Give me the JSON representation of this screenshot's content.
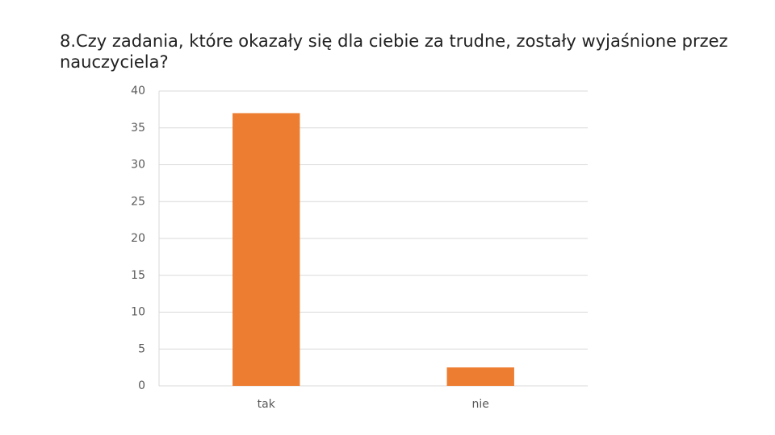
{
  "chart_data": {
    "type": "bar",
    "title": "8.Czy zadania, które okazały się dla ciebie za trudne, zostały wyjaśnione przez nauczyciela?",
    "categories": [
      "tak",
      "nie"
    ],
    "values": [
      37,
      2.5
    ],
    "color": "#ed7d31",
    "ylim": [
      0,
      40
    ],
    "yticks": [
      0,
      5,
      10,
      15,
      20,
      25,
      30,
      35,
      40
    ],
    "grid": true
  }
}
